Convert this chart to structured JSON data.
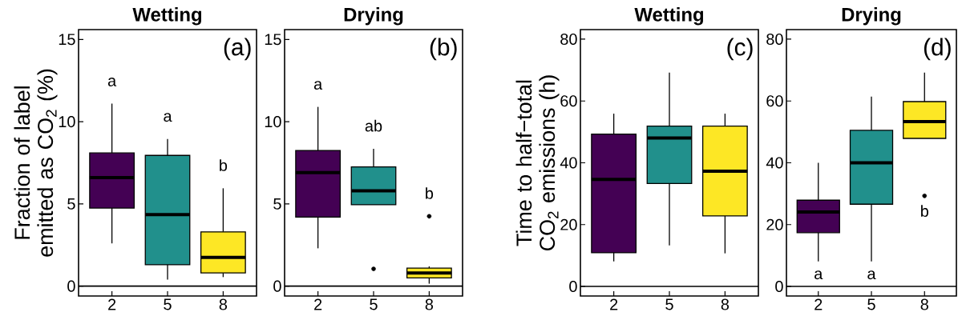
{
  "chart_data": [
    {
      "type": "box",
      "title": "Wetting",
      "ylabel": "Fraction of label emitted as CO$_{2}$ (%)",
      "categories": [
        "2",
        "5",
        "8"
      ],
      "colors": [
        "#440154",
        "#21908c",
        "#fde725"
      ],
      "boxes": [
        {
          "low": 2.6,
          "q1": 4.75,
          "median": 6.6,
          "q3": 8.1,
          "high": 11.1
        },
        {
          "low": 0.4,
          "q1": 1.3,
          "median": 4.35,
          "q3": 7.95,
          "high": 8.95
        },
        {
          "low": 0.55,
          "q1": 0.8,
          "median": 1.75,
          "q3": 3.3,
          "high": 5.95
        }
      ],
      "ylim": [
        -0.6,
        15.6
      ],
      "yticks": [
        0,
        5,
        10,
        15
      ],
      "ref_lines": [
        {
          "axis": "y",
          "value": 0
        }
      ],
      "annotations": [
        "(a)",
        "a",
        "a",
        "b"
      ]
    },
    {
      "type": "box",
      "title": "Drying",
      "categories": [
        "2",
        "5",
        "8"
      ],
      "colors": [
        "#440154",
        "#21908c",
        "#fde725"
      ],
      "boxes": [
        {
          "low": 2.3,
          "q1": 4.2,
          "median": 6.9,
          "q3": 8.25,
          "high": 10.9
        },
        {
          "low": 4.95,
          "q1": 4.95,
          "median": 5.8,
          "q3": 7.25,
          "high": 8.35,
          "outliers": [
            1.05
          ]
        },
        {
          "low": 0.15,
          "q1": 0.5,
          "median": 0.8,
          "q3": 1.1,
          "high": 1.2,
          "outliers": [
            4.25
          ]
        }
      ],
      "ylim": [
        -0.6,
        15.6
      ],
      "yticks": [
        0,
        5,
        10,
        15
      ],
      "ref_lines": [
        {
          "axis": "y",
          "value": 0
        }
      ],
      "annotations": [
        "(b)",
        "a",
        "ab",
        "b"
      ]
    },
    {
      "type": "box",
      "title": "Wetting",
      "ylabel": "Time to half−total CO$_{2}$ emissions (h)",
      "categories": [
        "2",
        "5",
        "8"
      ],
      "colors": [
        "#440154",
        "#21908c",
        "#fde725"
      ],
      "boxes": [
        {
          "low": 8.1,
          "q1": 10.9,
          "median": 34.6,
          "q3": 49.3,
          "high": 55.9
        },
        {
          "low": 13.3,
          "q1": 33.3,
          "median": 48.0,
          "q3": 51.9,
          "high": 69.2
        },
        {
          "low": 10.7,
          "q1": 22.8,
          "median": 37.3,
          "q3": 51.9,
          "high": 55.9
        }
      ],
      "ylim": [
        -3.1,
        83.1
      ],
      "yticks": [
        0,
        20,
        40,
        60,
        80
      ],
      "ref_lines": [
        {
          "axis": "y",
          "value": 0
        }
      ],
      "annotations": [
        "(c)"
      ]
    },
    {
      "type": "box",
      "title": "Drying",
      "categories": [
        "2",
        "5",
        "8"
      ],
      "colors": [
        "#440154",
        "#21908c",
        "#fde725"
      ],
      "boxes": [
        {
          "low": 8.1,
          "q1": 17.4,
          "median": 24.1,
          "q3": 27.9,
          "high": 40.0
        },
        {
          "low": 8.1,
          "q1": 26.6,
          "median": 40.0,
          "q3": 50.5,
          "high": 61.4
        },
        {
          "low": 47.9,
          "q1": 47.9,
          "median": 53.3,
          "q3": 59.8,
          "high": 69.2,
          "outliers": [
            29.3
          ]
        }
      ],
      "ylim": [
        -3.1,
        83.1
      ],
      "yticks": [
        0,
        20,
        40,
        60,
        80
      ],
      "ref_lines": [
        {
          "axis": "y",
          "value": 0
        }
      ],
      "annotations": [
        "(d)",
        "a",
        "a",
        "b"
      ]
    }
  ]
}
